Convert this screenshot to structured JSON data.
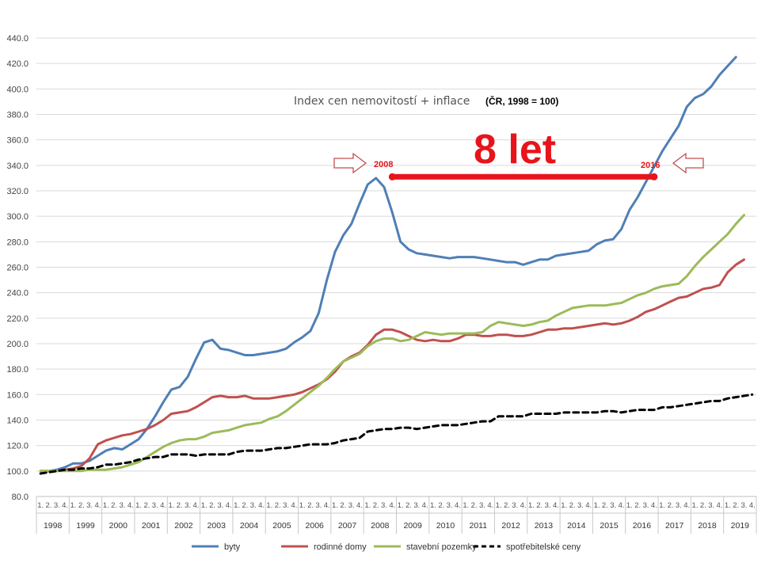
{
  "chart_data": {
    "type": "line",
    "title": "Index cen nemovitostí + inflace",
    "subtitle": "(ČR, 1998 = 100)",
    "ylim": [
      80,
      440
    ],
    "yticks": [
      "80.0",
      "100.0",
      "120.0",
      "140.0",
      "160.0",
      "180.0",
      "200.0",
      "220.0",
      "240.0",
      "260.0",
      "280.0",
      "300.0",
      "320.0",
      "340.0",
      "360.0",
      "380.0",
      "400.0",
      "420.0",
      "440.0"
    ],
    "quarter_labels": [
      "1.",
      "2.",
      "3.",
      "4."
    ],
    "years": [
      "1998",
      "1999",
      "2000",
      "2001",
      "2002",
      "2003",
      "2004",
      "2005",
      "2006",
      "2007",
      "2008",
      "2009",
      "2010",
      "2011",
      "2012",
      "2013",
      "2014",
      "2015",
      "2016",
      "2017",
      "2018",
      "2019"
    ],
    "grid": true,
    "legend_position": "bottom",
    "series": [
      {
        "name": "byty",
        "color": "#4f7fb5",
        "dash": "solid",
        "values": [
          98,
          100,
          101,
          103,
          106,
          106,
          108,
          112,
          116,
          118,
          117,
          121,
          125,
          133,
          143,
          154,
          164,
          166,
          174,
          188,
          201,
          203,
          196,
          195,
          193,
          191,
          191,
          192,
          193,
          194,
          196,
          201,
          205,
          210,
          224,
          250,
          272,
          285,
          294,
          310,
          325,
          330,
          323,
          303,
          280,
          274,
          271,
          270,
          269,
          268,
          267,
          268,
          268,
          268,
          267,
          266,
          265,
          264,
          264,
          262,
          264,
          266,
          266,
          269,
          270,
          271,
          272,
          273,
          278,
          281,
          282,
          290,
          305,
          315,
          327,
          339,
          351,
          361,
          371,
          386,
          393,
          396,
          402,
          411,
          418,
          425
        ]
      },
      {
        "name": "rodinné domy",
        "color": "#c0504d",
        "dash": "solid",
        "values": [
          100,
          100,
          100,
          101,
          102,
          104,
          110,
          121,
          124,
          126,
          128,
          129,
          131,
          133,
          136,
          140,
          145,
          146,
          147,
          150,
          154,
          158,
          159,
          158,
          158,
          159,
          157,
          157,
          157,
          158,
          159,
          160,
          162,
          165,
          168,
          172,
          178,
          186,
          190,
          193,
          199,
          207,
          211,
          211,
          209,
          206,
          203,
          202,
          203,
          202,
          202,
          204,
          207,
          207,
          206,
          206,
          207,
          207,
          206,
          206,
          207,
          209,
          211,
          211,
          212,
          212,
          213,
          214,
          215,
          216,
          215,
          216,
          218,
          221,
          225,
          227,
          230,
          233,
          236,
          237,
          240,
          243,
          244,
          246,
          256,
          262,
          266
        ]
      },
      {
        "name": "stavební pozemky",
        "color": "#9bbb59",
        "dash": "solid",
        "values": [
          100,
          100,
          100,
          100,
          100,
          100,
          101,
          101,
          101,
          102,
          103,
          105,
          107,
          111,
          115,
          119,
          122,
          124,
          125,
          125,
          127,
          130,
          131,
          132,
          134,
          136,
          137,
          138,
          141,
          143,
          147,
          152,
          157,
          162,
          167,
          173,
          180,
          186,
          189,
          192,
          198,
          202,
          204,
          204,
          202,
          203,
          206,
          209,
          208,
          207,
          208,
          208,
          208,
          208,
          209,
          214,
          217,
          216,
          215,
          214,
          215,
          217,
          218,
          222,
          225,
          228,
          229,
          230,
          230,
          230,
          231,
          232,
          235,
          238,
          240,
          243,
          245,
          246,
          247,
          253,
          261,
          268,
          274,
          280,
          286,
          294,
          301
        ]
      },
      {
        "name": "spotřebitelské ceny",
        "color": "#000000",
        "dash": "dashed",
        "values": [
          98,
          99,
          100,
          101,
          101,
          102,
          102,
          103,
          105,
          105,
          106,
          107,
          109,
          110,
          111,
          111,
          113,
          113,
          113,
          112,
          113,
          113,
          113,
          113,
          115,
          116,
          116,
          116,
          117,
          118,
          118,
          119,
          120,
          121,
          121,
          121,
          122,
          124,
          125,
          126,
          131,
          132,
          133,
          133,
          134,
          134,
          133,
          134,
          135,
          136,
          136,
          136,
          137,
          138,
          139,
          139,
          143,
          143,
          143,
          143,
          145,
          145,
          145,
          145,
          146,
          146,
          146,
          146,
          146,
          147,
          147,
          146,
          147,
          148,
          148,
          148,
          150,
          150,
          151,
          152,
          153,
          154,
          155,
          155,
          157,
          158,
          159,
          160
        ]
      }
    ],
    "annotations": {
      "big_label": "8 let",
      "start_year": "2008",
      "end_year": "2016",
      "bar_y": 331,
      "bar_from_index": 43,
      "bar_to_index": 75,
      "marker_color": "#e8141b",
      "arrow_color": "#c0504d"
    }
  }
}
